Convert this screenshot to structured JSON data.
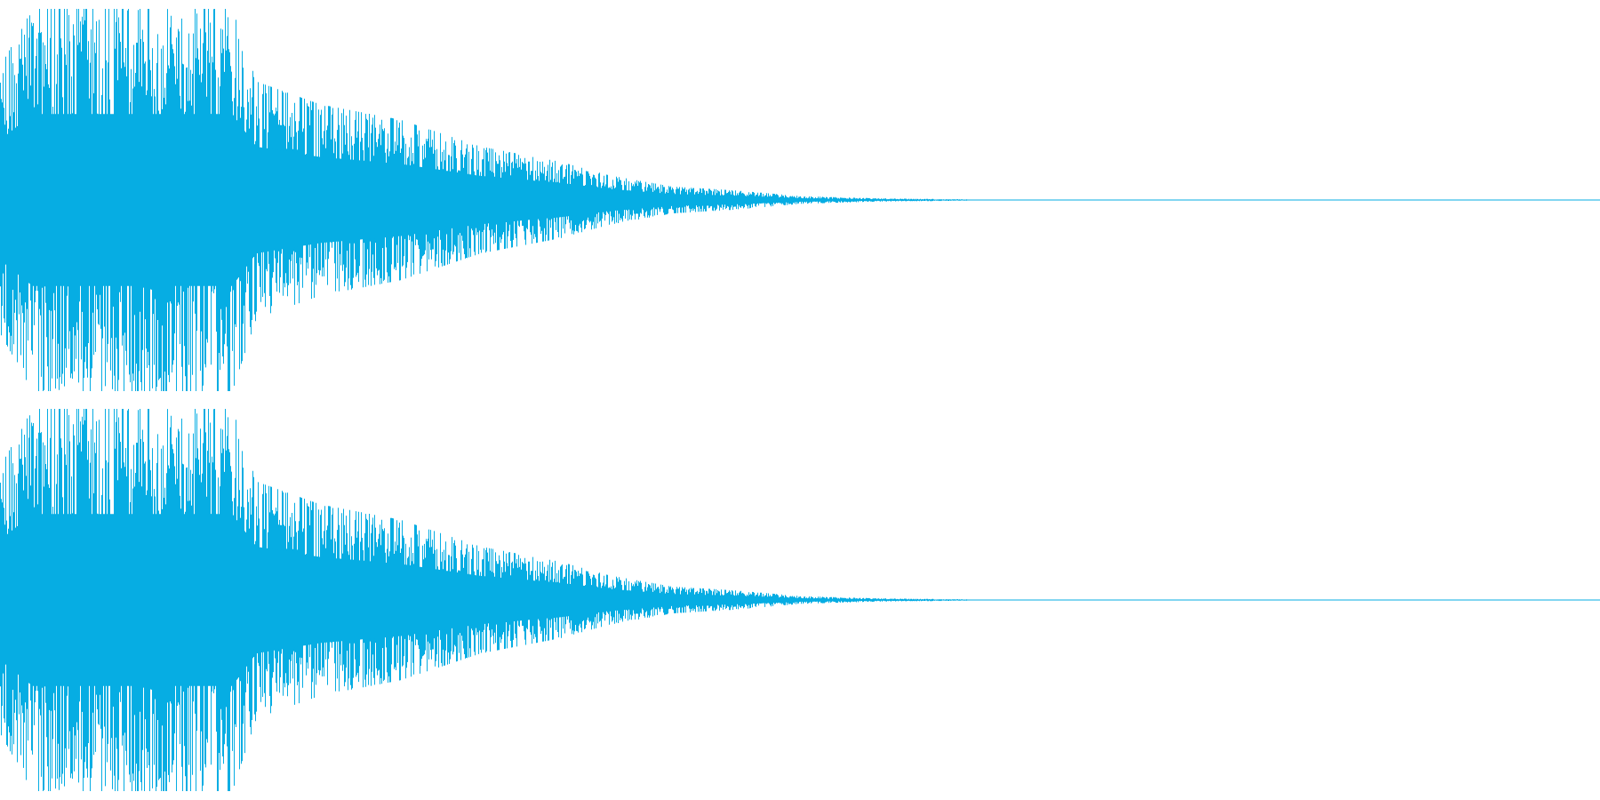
{
  "chart_data": {
    "type": "area",
    "title": "",
    "xlabel": "",
    "ylabel": "",
    "grid": false,
    "legend": "none",
    "duration_fraction_range": [
      0,
      1
    ],
    "amplitude_range": [
      -1,
      1
    ],
    "color": "#06ade3",
    "channels": [
      {
        "envelope": [
          {
            "t": 0.0,
            "peak": 0.7
          },
          {
            "t": 0.01,
            "peak": 0.85
          },
          {
            "t": 0.02,
            "peak": 1.0
          },
          {
            "t": 0.05,
            "peak": 1.0
          },
          {
            "t": 0.1,
            "peak": 1.0
          },
          {
            "t": 0.145,
            "peak": 1.0
          },
          {
            "t": 0.152,
            "peak": 0.82
          },
          {
            "t": 0.16,
            "peak": 0.62
          },
          {
            "t": 0.2,
            "peak": 0.5
          },
          {
            "t": 0.25,
            "peak": 0.42
          },
          {
            "t": 0.3,
            "peak": 0.28
          },
          {
            "t": 0.35,
            "peak": 0.2
          },
          {
            "t": 0.38,
            "peak": 0.13
          },
          {
            "t": 0.42,
            "peak": 0.07
          },
          {
            "t": 0.46,
            "peak": 0.05
          },
          {
            "t": 0.5,
            "peak": 0.02
          },
          {
            "t": 0.55,
            "peak": 0.008
          },
          {
            "t": 0.6,
            "peak": 0.004
          },
          {
            "t": 0.62,
            "peak": 0.0
          },
          {
            "t": 1.0,
            "peak": 0.0
          }
        ]
      },
      {
        "envelope": [
          {
            "t": 0.0,
            "peak": 0.7
          },
          {
            "t": 0.01,
            "peak": 0.85
          },
          {
            "t": 0.02,
            "peak": 1.0
          },
          {
            "t": 0.05,
            "peak": 1.0
          },
          {
            "t": 0.1,
            "peak": 1.0
          },
          {
            "t": 0.145,
            "peak": 1.0
          },
          {
            "t": 0.152,
            "peak": 0.82
          },
          {
            "t": 0.16,
            "peak": 0.62
          },
          {
            "t": 0.2,
            "peak": 0.5
          },
          {
            "t": 0.25,
            "peak": 0.42
          },
          {
            "t": 0.3,
            "peak": 0.28
          },
          {
            "t": 0.35,
            "peak": 0.2
          },
          {
            "t": 0.38,
            "peak": 0.13
          },
          {
            "t": 0.42,
            "peak": 0.07
          },
          {
            "t": 0.46,
            "peak": 0.05
          },
          {
            "t": 0.5,
            "peak": 0.02
          },
          {
            "t": 0.55,
            "peak": 0.008
          },
          {
            "t": 0.6,
            "peak": 0.004
          },
          {
            "t": 0.62,
            "peak": 0.0
          },
          {
            "t": 1.0,
            "peak": 0.0
          }
        ]
      }
    ]
  }
}
